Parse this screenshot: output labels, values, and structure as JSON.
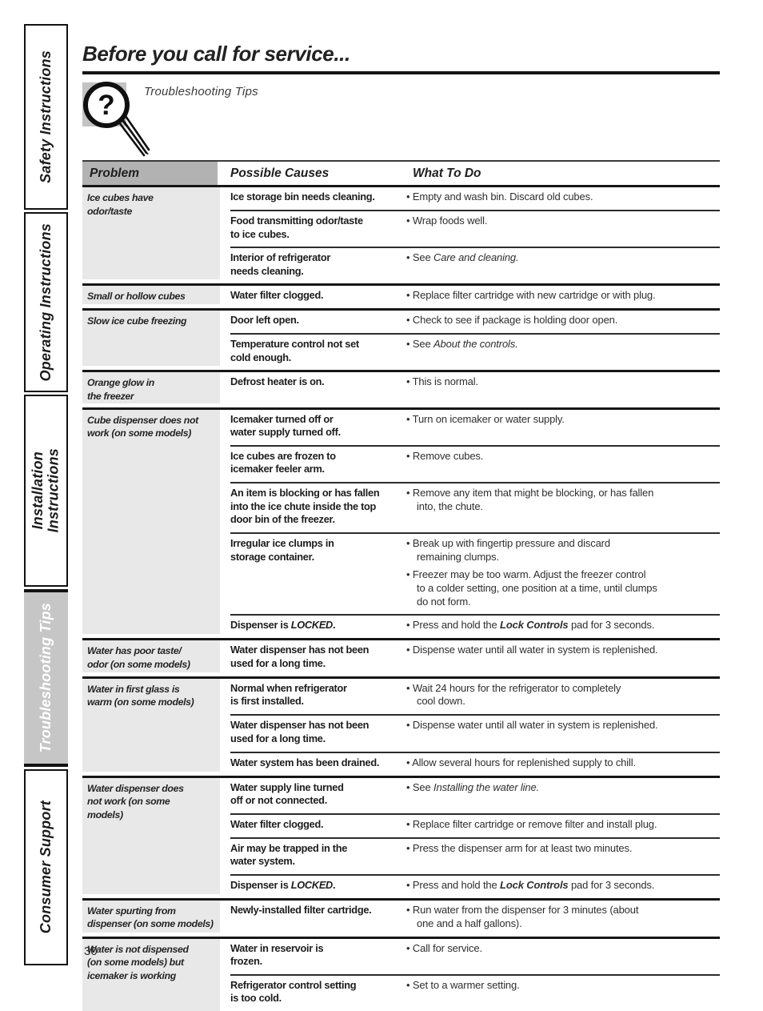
{
  "colors": {
    "title_rule": "#141414",
    "problem_header_bg": "#b2b2b2",
    "problem_cell_bg": "#e8e8e8",
    "active_tab_bg": "#c6c6c6",
    "active_tab_text": "#ffffff",
    "icon_bg": "#c3c3c3"
  },
  "page": {
    "number": "30"
  },
  "sidebar": {
    "items": [
      {
        "label": "Safety Instructions",
        "active": false
      },
      {
        "label": "Operating Instructions",
        "active": false
      },
      {
        "label": "Installation\nInstructions",
        "active": false
      },
      {
        "label": "Troubleshooting Tips",
        "active": true
      },
      {
        "label": "Consumer Support",
        "active": false
      }
    ]
  },
  "header": {
    "title": "Before you call for service...",
    "tagline": "Troubleshooting Tips",
    "icon": "question-magnifier-icon",
    "icon_glyph": "?"
  },
  "table": {
    "columns": [
      "Problem",
      "Possible Causes",
      "What To Do"
    ],
    "groups": [
      {
        "problem": "Ice cubes have\nodor/taste",
        "rows": [
          {
            "cause": [
              {
                "t": "Ice storage bin needs cleaning."
              }
            ],
            "todos": [
              [
                {
                  "t": "Empty and wash bin. Discard old cubes."
                }
              ]
            ]
          },
          {
            "cause": [
              {
                "t": "Food transmitting odor/taste\nto ice cubes."
              }
            ],
            "todos": [
              [
                {
                  "t": "Wrap foods well."
                }
              ]
            ]
          },
          {
            "cause": [
              {
                "t": "Interior of refrigerator\nneeds cleaning."
              }
            ],
            "todos": [
              [
                {
                  "t": "See "
                },
                {
                  "t": "Care and cleaning.",
                  "i": true
                }
              ]
            ]
          }
        ]
      },
      {
        "problem": "Small or hollow cubes",
        "rows": [
          {
            "cause": [
              {
                "t": "Water filter clogged."
              }
            ],
            "todos": [
              [
                {
                  "t": "Replace filter cartridge with new cartridge or with plug."
                }
              ]
            ]
          }
        ]
      },
      {
        "problem": "Slow ice cube freezing",
        "rows": [
          {
            "cause": [
              {
                "t": "Door left open."
              }
            ],
            "todos": [
              [
                {
                  "t": "Check to see if package is holding door open."
                }
              ]
            ]
          },
          {
            "cause": [
              {
                "t": "Temperature control not set\ncold enough."
              }
            ],
            "todos": [
              [
                {
                  "t": "See "
                },
                {
                  "t": "About the controls.",
                  "i": true
                }
              ]
            ]
          }
        ]
      },
      {
        "problem": "Orange glow in\nthe freezer",
        "rows": [
          {
            "cause": [
              {
                "t": "Defrost heater is on."
              }
            ],
            "todos": [
              [
                {
                  "t": "This is normal."
                }
              ]
            ]
          }
        ]
      },
      {
        "problem": "Cube dispenser does not\nwork (on some models)",
        "rows": [
          {
            "cause": [
              {
                "t": "Icemaker turned off or\nwater supply turned off."
              }
            ],
            "todos": [
              [
                {
                  "t": "Turn on icemaker or water supply."
                }
              ]
            ]
          },
          {
            "cause": [
              {
                "t": "Ice cubes are frozen to\nicemaker feeler arm."
              }
            ],
            "todos": [
              [
                {
                  "t": "Remove cubes."
                }
              ]
            ]
          },
          {
            "cause": [
              {
                "t": "An item is blocking or has fallen\ninto the ice chute inside the top\ndoor bin of the freezer."
              }
            ],
            "todos": [
              [
                {
                  "t": "Remove any item that might be blocking, or has fallen\ninto, the chute."
                }
              ]
            ]
          },
          {
            "cause": [
              {
                "t": "Irregular ice clumps in\nstorage container."
              }
            ],
            "todos": [
              [
                {
                  "t": "Break up with fingertip pressure and discard\nremaining clumps."
                }
              ],
              [
                {
                  "t": "Freezer may be too warm. Adjust the freezer control\nto a colder setting, one position at a time, until clumps\ndo not form."
                }
              ]
            ]
          },
          {
            "cause": [
              {
                "t": "Dispenser is "
              },
              {
                "t": "LOCKED",
                "i": true
              },
              {
                "t": "."
              }
            ],
            "todos": [
              [
                {
                  "t": "Press and hold the "
                },
                {
                  "t": "Lock Controls",
                  "bi": true
                },
                {
                  "t": " pad for 3 seconds."
                }
              ]
            ]
          }
        ]
      },
      {
        "problem": "Water has poor taste/\nodor (on some models)",
        "rows": [
          {
            "cause": [
              {
                "t": "Water dispenser has not been\nused for a long time."
              }
            ],
            "todos": [
              [
                {
                  "t": "Dispense water until all water in system is replenished."
                }
              ]
            ]
          }
        ]
      },
      {
        "problem": "Water in first glass is\nwarm (on some models)",
        "rows": [
          {
            "cause": [
              {
                "t": "Normal when refrigerator\nis first installed."
              }
            ],
            "todos": [
              [
                {
                  "t": "Wait 24 hours for the refrigerator to completely\ncool down."
                }
              ]
            ]
          },
          {
            "cause": [
              {
                "t": "Water dispenser has not been\nused for a long time."
              }
            ],
            "todos": [
              [
                {
                  "t": "Dispense water until all water in system is replenished."
                }
              ]
            ]
          },
          {
            "cause": [
              {
                "t": "Water system has been drained."
              }
            ],
            "todos": [
              [
                {
                  "t": "Allow several hours for replenished supply to chill."
                }
              ]
            ]
          }
        ]
      },
      {
        "problem": "Water dispenser does\nnot work (on some\nmodels)",
        "rows": [
          {
            "cause": [
              {
                "t": "Water supply line turned\noff or not connected."
              }
            ],
            "todos": [
              [
                {
                  "t": "See "
                },
                {
                  "t": "Installing the water line.",
                  "i": true
                }
              ]
            ]
          },
          {
            "cause": [
              {
                "t": "Water filter clogged."
              }
            ],
            "todos": [
              [
                {
                  "t": "Replace filter cartridge or remove filter and install plug."
                }
              ]
            ]
          },
          {
            "cause": [
              {
                "t": "Air may be trapped in the\nwater system."
              }
            ],
            "todos": [
              [
                {
                  "t": "Press the dispenser arm for at least two minutes."
                }
              ]
            ]
          },
          {
            "cause": [
              {
                "t": "Dispenser is "
              },
              {
                "t": "LOCKED",
                "i": true
              },
              {
                "t": "."
              }
            ],
            "todos": [
              [
                {
                  "t": "Press and hold the "
                },
                {
                  "t": "Lock Controls",
                  "bi": true
                },
                {
                  "t": " pad for 3 seconds."
                }
              ]
            ]
          }
        ]
      },
      {
        "problem": "Water spurting from\ndispenser (on some models)",
        "rows": [
          {
            "cause": [
              {
                "t": "Newly-installed filter cartridge."
              }
            ],
            "todos": [
              [
                {
                  "t": "Run water from the dispenser for 3 minutes (about\none and a half gallons)."
                }
              ]
            ]
          }
        ]
      },
      {
        "problem": "Water is not dispensed\n(on some models) but\nicemaker is working",
        "rows": [
          {
            "cause": [
              {
                "t": "Water in reservoir is\nfrozen."
              }
            ],
            "todos": [
              [
                {
                  "t": "Call for service."
                }
              ]
            ]
          },
          {
            "cause": [
              {
                "t": "Refrigerator control setting\nis too cold."
              }
            ],
            "todos": [
              [
                {
                  "t": "Set to a warmer setting."
                }
              ]
            ]
          }
        ]
      }
    ]
  }
}
